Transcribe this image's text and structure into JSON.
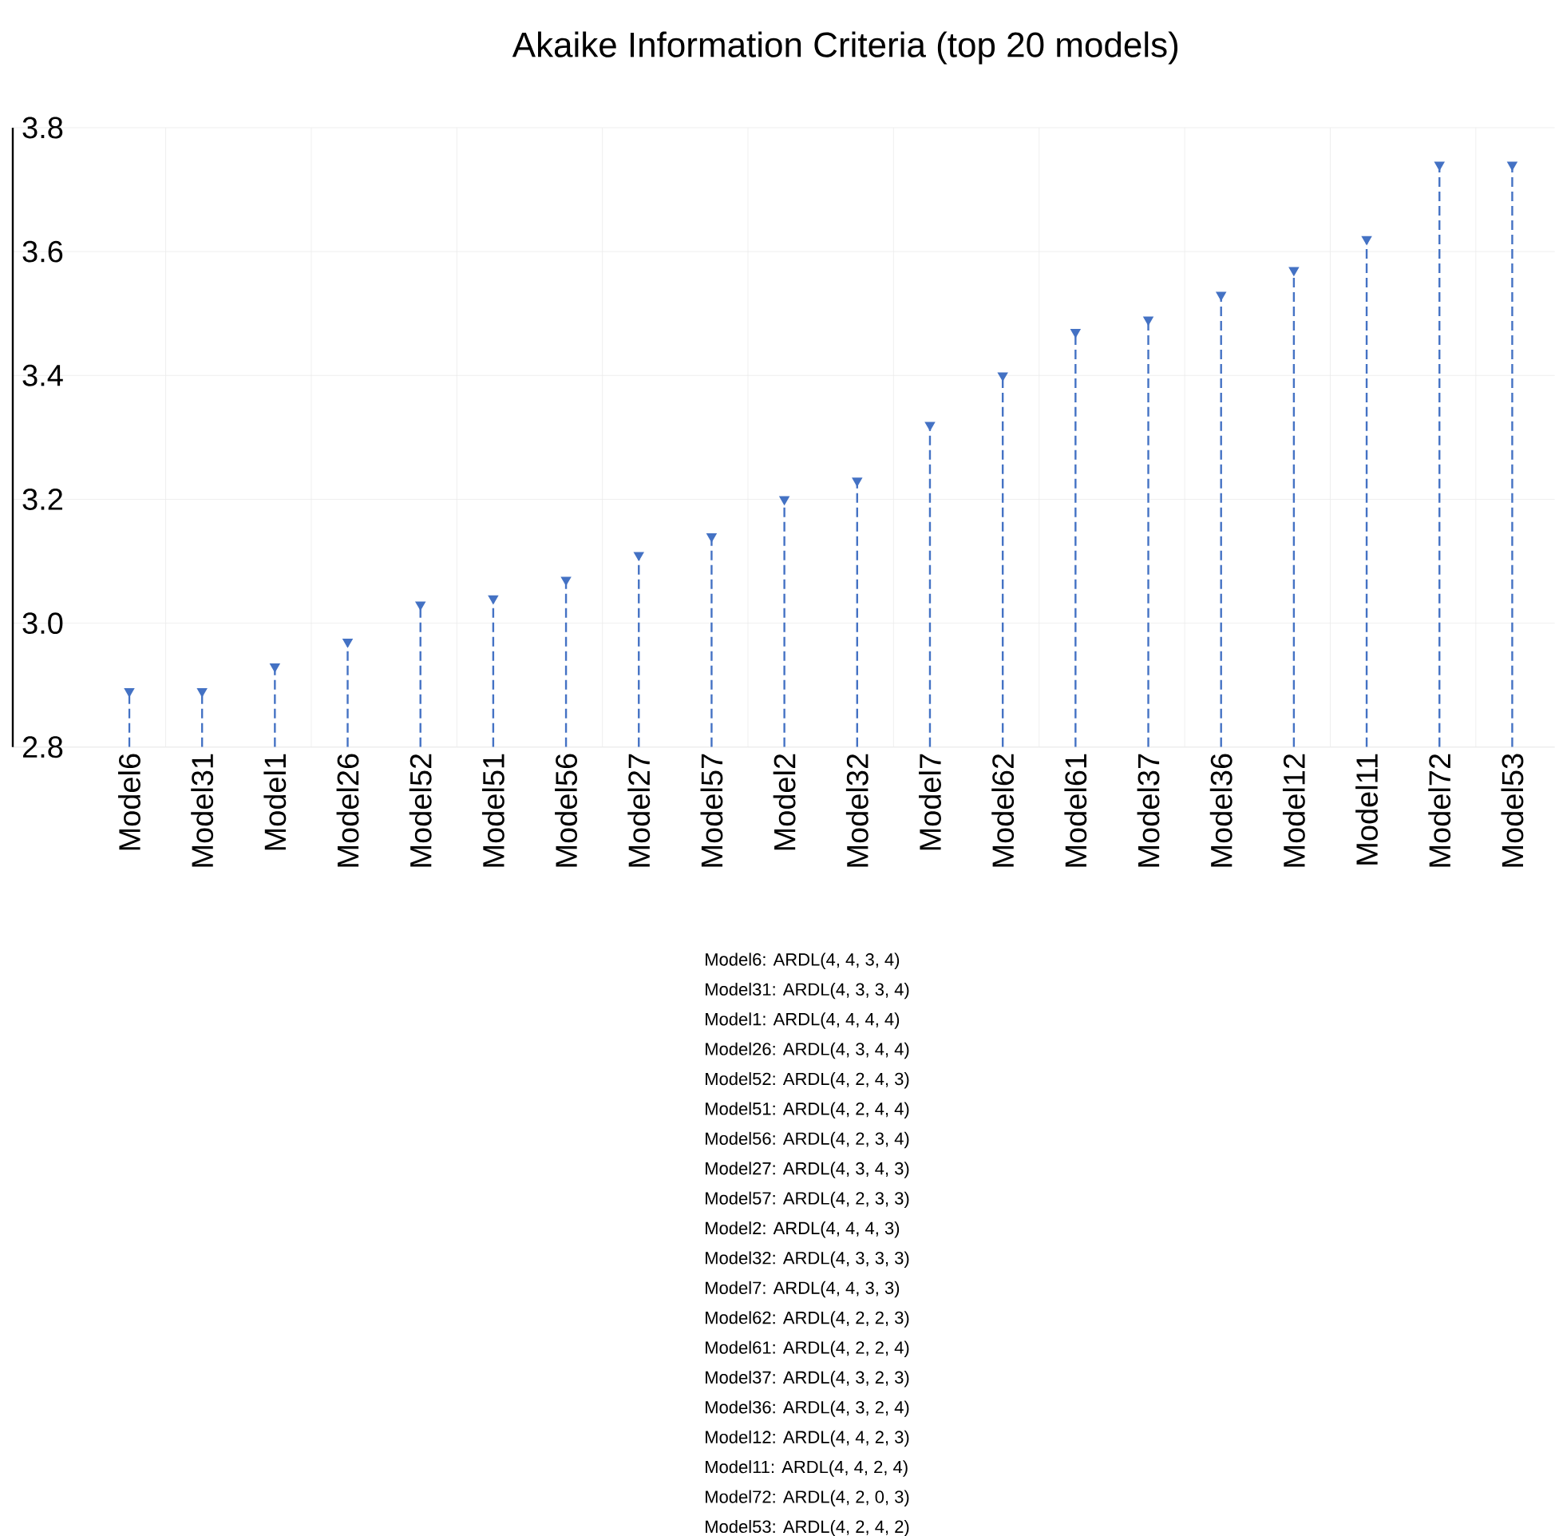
{
  "chart_data": {
    "type": "lollipop",
    "title": "Akaike Information Criteria (top 20 models)",
    "categories": [
      "Model6",
      "Model31",
      "Model1",
      "Model26",
      "Model52",
      "Model51",
      "Model56",
      "Model27",
      "Model57",
      "Model2",
      "Model32",
      "Model7",
      "Model62",
      "Model61",
      "Model37",
      "Model36",
      "Model12",
      "Model11",
      "Model72",
      "Model53"
    ],
    "values": [
      2.89,
      2.89,
      2.93,
      2.97,
      3.03,
      3.04,
      3.07,
      3.11,
      3.14,
      3.2,
      3.23,
      3.32,
      3.4,
      3.47,
      3.49,
      3.53,
      3.57,
      3.62,
      3.74,
      3.74
    ],
    "color": "#4472c4",
    "marker": "triangle",
    "line_style": "dashed",
    "grid": true,
    "ylim": [
      2.8,
      3.8
    ],
    "yticks": [
      2.8,
      {
        "value": 3,
        "label": "3.0"
      },
      3.2,
      3.4,
      3.6,
      3.8
    ],
    "annotations": [
      "Model6: ARDL(4, 4, 3, 4)",
      "Model31: ARDL(4, 3, 3, 4)",
      "Model1: ARDL(4, 4, 4, 4)",
      "Model26: ARDL(4, 3, 4, 4)",
      "Model52: ARDL(4, 2, 4, 3)",
      "Model51: ARDL(4, 2, 4, 4)",
      "Model56: ARDL(4, 2, 3, 4)",
      "Model27: ARDL(4, 3, 4, 3)",
      "Model57: ARDL(4, 2, 3, 3)",
      "Model2: ARDL(4, 4, 4, 3)",
      "Model32: ARDL(4, 3, 3, 3)",
      "Model7: ARDL(4, 4, 3, 3)",
      "Model62: ARDL(4, 2, 2, 3)",
      "Model61: ARDL(4, 2, 2, 4)",
      "Model37: ARDL(4, 3, 2, 3)",
      "Model36: ARDL(4, 3, 2, 4)",
      "Model12: ARDL(4, 4, 2, 3)",
      "Model11: ARDL(4, 4, 2, 4)",
      "Model72: ARDL(4, 2, 0, 3)",
      "Model53: ARDL(4, 2, 4, 2)"
    ]
  }
}
